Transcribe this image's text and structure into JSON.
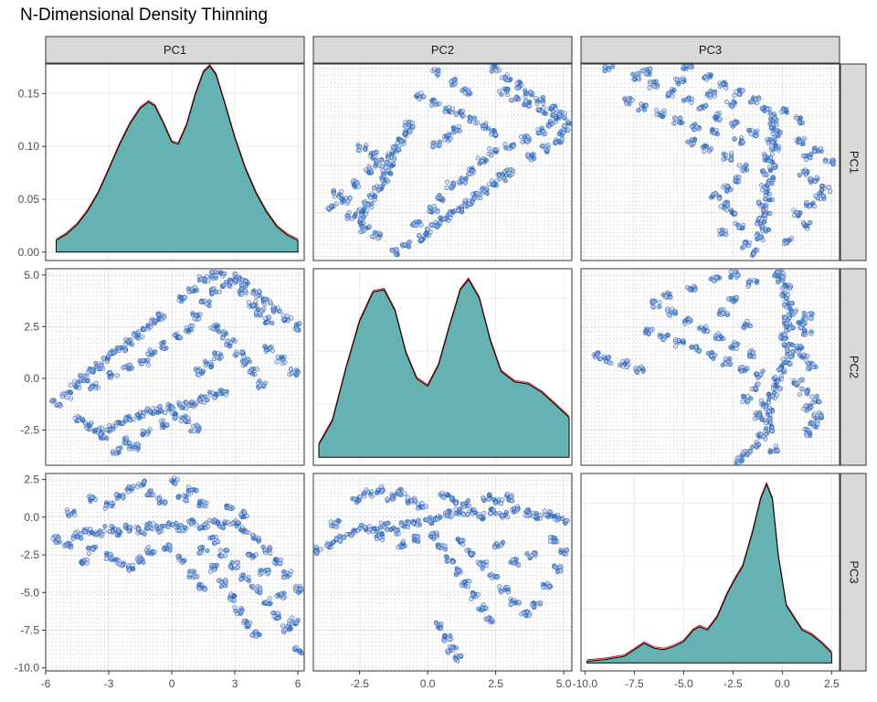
{
  "title": "N-Dimensional Density Thinning",
  "colors": {
    "density_fill": "#66b2b2",
    "density_outline_a": "#000000",
    "density_outline_b": "#cc3333",
    "point_stroke": "#1f4e9b",
    "point_fill": "#a9bff0",
    "dense_point": "#1f78c8",
    "grid_dot": "#9a9a9a",
    "strip_bg": "#d9d9d9",
    "gridline": "#ebebeb"
  },
  "chart_data": {
    "type": "scatter",
    "variables": [
      "PC1",
      "PC2",
      "PC3"
    ],
    "axes": {
      "PC1": {
        "range": [
          -6,
          6.3
        ],
        "ticks": [
          -6,
          -3,
          0,
          3,
          6
        ],
        "tick_labels": [
          "-6",
          "-3",
          "0",
          "3",
          "6"
        ]
      },
      "PC2": {
        "range": [
          -4.2,
          5.3
        ],
        "ticks": [
          -2.5,
          0,
          2.5,
          5
        ],
        "tick_labels": [
          "-2.5",
          "0.0",
          "2.5",
          "5.0"
        ]
      },
      "PC3": {
        "range": [
          -10.2,
          2.9
        ],
        "ticks": [
          -10,
          -7.5,
          -5,
          -2.5,
          0,
          2.5
        ],
        "tick_labels": [
          "-10.0",
          "-7.5",
          "-5.0",
          "-2.5",
          "0.0",
          "2.5"
        ]
      }
    },
    "density_axis": {
      "range": [
        -0.008,
        0.178
      ],
      "ticks": [
        0,
        0.05,
        0.1,
        0.15
      ],
      "tick_labels": [
        "0.00",
        "0.05",
        "0.10",
        "0.15"
      ]
    },
    "grid": true,
    "diagonal_densities": {
      "PC1": [
        [
          -5.5,
          0.011
        ],
        [
          -5,
          0.017
        ],
        [
          -4.5,
          0.026
        ],
        [
          -4,
          0.039
        ],
        [
          -3.5,
          0.056
        ],
        [
          -3,
          0.078
        ],
        [
          -2.5,
          0.101
        ],
        [
          -2,
          0.121
        ],
        [
          -1.5,
          0.136
        ],
        [
          -1.1,
          0.142
        ],
        [
          -0.8,
          0.138
        ],
        [
          -0.4,
          0.122
        ],
        [
          0,
          0.104
        ],
        [
          0.3,
          0.102
        ],
        [
          0.7,
          0.12
        ],
        [
          1.1,
          0.148
        ],
        [
          1.5,
          0.17
        ],
        [
          1.8,
          0.176
        ],
        [
          2.1,
          0.168
        ],
        [
          2.5,
          0.142
        ],
        [
          3,
          0.108
        ],
        [
          3.5,
          0.079
        ],
        [
          4,
          0.056
        ],
        [
          4.5,
          0.038
        ],
        [
          5,
          0.024
        ],
        [
          5.5,
          0.016
        ],
        [
          6,
          0.011
        ]
      ],
      "PC2": [
        [
          -4,
          0.012
        ],
        [
          -3.5,
          0.035
        ],
        [
          -3,
          0.085
        ],
        [
          -2.5,
          0.13
        ],
        [
          -2,
          0.158
        ],
        [
          -1.6,
          0.16
        ],
        [
          -1.2,
          0.14
        ],
        [
          -0.8,
          0.1
        ],
        [
          -0.4,
          0.075
        ],
        [
          0,
          0.068
        ],
        [
          0.4,
          0.088
        ],
        [
          0.8,
          0.125
        ],
        [
          1.2,
          0.16
        ],
        [
          1.5,
          0.17
        ],
        [
          1.9,
          0.152
        ],
        [
          2.3,
          0.112
        ],
        [
          2.7,
          0.082
        ],
        [
          3.2,
          0.072
        ],
        [
          3.7,
          0.07
        ],
        [
          4.2,
          0.062
        ],
        [
          4.7,
          0.05
        ],
        [
          5.2,
          0.038
        ]
      ],
      "PC3": [
        [
          -9.9,
          0.002
        ],
        [
          -9,
          0.004
        ],
        [
          -8,
          0.008
        ],
        [
          -7.5,
          0.016
        ],
        [
          -7,
          0.024
        ],
        [
          -6.5,
          0.018
        ],
        [
          -6,
          0.016
        ],
        [
          -5.5,
          0.02
        ],
        [
          -5,
          0.026
        ],
        [
          -4.5,
          0.04
        ],
        [
          -4.2,
          0.044
        ],
        [
          -3.8,
          0.04
        ],
        [
          -3.3,
          0.056
        ],
        [
          -2.8,
          0.084
        ],
        [
          -2.4,
          0.102
        ],
        [
          -2,
          0.118
        ],
        [
          -1.5,
          0.16
        ],
        [
          -1.1,
          0.2
        ],
        [
          -0.8,
          0.218
        ],
        [
          -0.5,
          0.2
        ],
        [
          -0.2,
          0.13
        ],
        [
          0.2,
          0.07
        ],
        [
          0.6,
          0.055
        ],
        [
          1,
          0.04
        ],
        [
          1.5,
          0.034
        ],
        [
          2,
          0.024
        ],
        [
          2.5,
          0.012
        ]
      ]
    },
    "pairs": {
      "PC1_PC2": [
        [
          -5.5,
          -1.2
        ],
        [
          -5,
          -0.8
        ],
        [
          -4.6,
          -0.3
        ],
        [
          -4.2,
          0
        ],
        [
          -3.8,
          0.3
        ],
        [
          -3.5,
          0.6
        ],
        [
          -3.1,
          0.9
        ],
        [
          -2.8,
          1.2
        ],
        [
          -2.4,
          1.5
        ],
        [
          -2,
          1.8
        ],
        [
          -1.6,
          2.1
        ],
        [
          -1.2,
          2.4
        ],
        [
          -0.8,
          2.7
        ],
        [
          -0.5,
          3
        ],
        [
          -1,
          1.3
        ],
        [
          -0.4,
          1.6
        ],
        [
          0.2,
          2
        ],
        [
          0.8,
          2.4
        ],
        [
          1.2,
          3
        ],
        [
          1.6,
          3.6
        ],
        [
          2.1,
          4.2
        ],
        [
          2.6,
          4.6
        ],
        [
          3.1,
          4.9
        ],
        [
          3.5,
          4.6
        ],
        [
          4,
          4.1
        ],
        [
          4.5,
          3.7
        ],
        [
          5,
          3.3
        ],
        [
          5.5,
          2.9
        ],
        [
          6,
          2.5
        ],
        [
          0.5,
          3.8
        ],
        [
          1,
          4.3
        ],
        [
          1.5,
          4.8
        ],
        [
          2,
          5
        ],
        [
          2.5,
          5.1
        ],
        [
          3,
          4.7
        ],
        [
          3.4,
          4.2
        ],
        [
          3.8,
          3.6
        ],
        [
          4.2,
          3.2
        ],
        [
          4.6,
          2.8
        ],
        [
          2,
          2.5
        ],
        [
          2.4,
          2.1
        ],
        [
          2.8,
          1.7
        ],
        [
          3.2,
          1.2
        ],
        [
          3.5,
          0.8
        ],
        [
          3.9,
          0.3
        ],
        [
          4.3,
          -0.3
        ],
        [
          1.3,
          0.3
        ],
        [
          1.7,
          0.7
        ],
        [
          2.2,
          1.1
        ],
        [
          -4,
          -2.3
        ],
        [
          -3.5,
          -2.5
        ],
        [
          -3,
          -2.4
        ],
        [
          -2.5,
          -2.2
        ],
        [
          -2,
          -2
        ],
        [
          -1.5,
          -1.8
        ],
        [
          -1,
          -1.6
        ],
        [
          -0.5,
          -1.5
        ],
        [
          0,
          -1.4
        ],
        [
          0.5,
          -1.3
        ],
        [
          1,
          -1.2
        ],
        [
          1.5,
          -1.0
        ],
        [
          2,
          -0.8
        ],
        [
          2.5,
          -0.7
        ],
        [
          -3.2,
          -2.8
        ],
        [
          -2.2,
          -3.0
        ],
        [
          -1.2,
          -2.6
        ],
        [
          -0.3,
          -2.2
        ],
        [
          0.6,
          -2.0
        ],
        [
          1.1,
          -2.4
        ],
        [
          -1.8,
          -3.3
        ],
        [
          -2.6,
          -3.5
        ],
        [
          0.1,
          -1.8
        ],
        [
          -1.3,
          0.8
        ],
        [
          -2.1,
          0.5
        ],
        [
          -2.8,
          0.2
        ],
        [
          4.6,
          1.4
        ],
        [
          5.2,
          0.9
        ],
        [
          5.8,
          0.3
        ],
        [
          -4.4,
          -1.9
        ],
        [
          -3.7,
          -0.4
        ]
      ],
      "PC1_PC3": [
        [
          -5.5,
          -1.5
        ],
        [
          -5,
          -1.8
        ],
        [
          -4.5,
          -1.2
        ],
        [
          -4,
          -0.9
        ],
        [
          -3.5,
          -1.1
        ],
        [
          -3,
          -0.8
        ],
        [
          -2.5,
          -1.0
        ],
        [
          -2,
          -0.7
        ],
        [
          -1.5,
          -0.9
        ],
        [
          -1,
          -0.6
        ],
        [
          -0.5,
          -0.8
        ],
        [
          0,
          -0.5
        ],
        [
          0.5,
          -0.7
        ],
        [
          1,
          -0.4
        ],
        [
          1.5,
          -0.6
        ],
        [
          2,
          -0.3
        ],
        [
          2.5,
          -0.5
        ],
        [
          3,
          -0.4
        ],
        [
          3.5,
          -0.8
        ],
        [
          4,
          -1.4
        ],
        [
          4.5,
          -2.2
        ],
        [
          5,
          -3.0
        ],
        [
          5.5,
          -3.8
        ],
        [
          6,
          -4.8
        ],
        [
          -3,
          0.8
        ],
        [
          -2.5,
          1.4
        ],
        [
          -2,
          1.9
        ],
        [
          -1.5,
          2.2
        ],
        [
          -1,
          1.6
        ],
        [
          -0.5,
          1.1
        ],
        [
          0.5,
          1.3
        ],
        [
          1,
          1.8
        ],
        [
          1.5,
          0.9
        ],
        [
          2,
          -1.5
        ],
        [
          2.5,
          -2.4
        ],
        [
          3,
          -3.2
        ],
        [
          3.5,
          -4.0
        ],
        [
          4,
          -4.8
        ],
        [
          4.5,
          -5.6
        ],
        [
          5,
          -6.5
        ],
        [
          5.5,
          -7.4
        ],
        [
          6,
          -8.8
        ],
        [
          1.5,
          -2.2
        ],
        [
          2,
          -3.4
        ],
        [
          2.4,
          -4.4
        ],
        [
          2.8,
          -5.3
        ],
        [
          3.2,
          -6.2
        ],
        [
          3.6,
          -7.1
        ],
        [
          4,
          -7.8
        ],
        [
          0.5,
          -2.8
        ],
        [
          1,
          -3.8
        ],
        [
          1.4,
          -4.6
        ],
        [
          -1,
          -2.2
        ],
        [
          -1.5,
          -2.8
        ],
        [
          -2,
          -3.4
        ],
        [
          -2.5,
          -3.0
        ],
        [
          -3,
          -2.6
        ],
        [
          -3.8,
          -2.2
        ],
        [
          -4.2,
          -3.0
        ],
        [
          -0.2,
          -2.0
        ],
        [
          3.8,
          -2.6
        ],
        [
          4.4,
          -3.6
        ],
        [
          5.2,
          -5.2
        ],
        [
          5.8,
          -6.9
        ],
        [
          -4.8,
          0.3
        ],
        [
          -3.8,
          1.2
        ],
        [
          0.2,
          2.4
        ],
        [
          2.8,
          0.8
        ],
        [
          3.4,
          0.2
        ]
      ],
      "PC2_PC3": [
        [
          -4,
          -2.2
        ],
        [
          -3.6,
          -1.8
        ],
        [
          -3.2,
          -1.4
        ],
        [
          -2.8,
          -1.0
        ],
        [
          -2.4,
          -0.7
        ],
        [
          -2,
          -0.8
        ],
        [
          -1.6,
          -0.6
        ],
        [
          -1.2,
          -0.9
        ],
        [
          -0.8,
          -0.5
        ],
        [
          -0.4,
          -0.3
        ],
        [
          0,
          -0.2
        ],
        [
          0.4,
          0
        ],
        [
          0.8,
          0.2
        ],
        [
          1.2,
          0.4
        ],
        [
          1.6,
          0.3
        ],
        [
          2,
          0.1
        ],
        [
          2.4,
          0.4
        ],
        [
          2.8,
          0.2
        ],
        [
          3.2,
          0.5
        ],
        [
          3.6,
          0.3
        ],
        [
          4,
          0.1
        ],
        [
          4.4,
          0.2
        ],
        [
          4.8,
          0
        ],
        [
          5.1,
          -0.2
        ],
        [
          -2.6,
          1.2
        ],
        [
          -2.2,
          1.6
        ],
        [
          -1.8,
          1.8
        ],
        [
          -1.4,
          1.3
        ],
        [
          -1,
          1.7
        ],
        [
          -0.6,
          1.1
        ],
        [
          -0.2,
          0.8
        ],
        [
          0.6,
          1.5
        ],
        [
          1,
          1.1
        ],
        [
          1.4,
          0.9
        ],
        [
          2.2,
          1.3
        ],
        [
          2.6,
          1.0
        ],
        [
          3,
          1.3
        ],
        [
          0.2,
          -1.2
        ],
        [
          0.5,
          -2.0
        ],
        [
          0.8,
          -2.8
        ],
        [
          1.1,
          -3.6
        ],
        [
          1.4,
          -4.4
        ],
        [
          1.7,
          -5.2
        ],
        [
          2,
          -6.0
        ],
        [
          2.3,
          -6.8
        ],
        [
          1.2,
          -1.6
        ],
        [
          1.6,
          -2.4
        ],
        [
          2,
          -3.2
        ],
        [
          2.4,
          -4.0
        ],
        [
          2.8,
          -4.8
        ],
        [
          3.2,
          -5.6
        ],
        [
          3.6,
          -6.4
        ],
        [
          4,
          -5.8
        ],
        [
          4.4,
          -4.6
        ],
        [
          4.8,
          -3.4
        ],
        [
          5,
          -2.4
        ],
        [
          0.4,
          -7.2
        ],
        [
          0.7,
          -8.0
        ],
        [
          0.9,
          -8.8
        ],
        [
          1.1,
          -9.4
        ],
        [
          -0.4,
          -1.4
        ],
        [
          -1,
          -1.8
        ],
        [
          -1.8,
          -1.3
        ],
        [
          3.8,
          -2.5
        ],
        [
          4.6,
          -1.5
        ],
        [
          2.6,
          -1.8
        ],
        [
          3.2,
          -3.0
        ],
        [
          -3.4,
          -0.4
        ]
      ]
    }
  }
}
